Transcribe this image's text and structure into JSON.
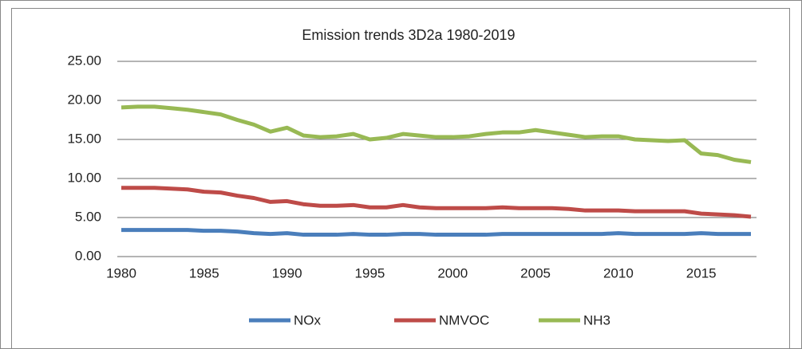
{
  "chart_data": {
    "type": "line",
    "title": "Emission trends 3D2a 1980-2019",
    "x": [
      1980,
      1981,
      1982,
      1983,
      1984,
      1985,
      1986,
      1987,
      1988,
      1989,
      1990,
      1991,
      1992,
      1993,
      1994,
      1995,
      1996,
      1997,
      1998,
      1999,
      2000,
      2001,
      2002,
      2003,
      2004,
      2005,
      2006,
      2007,
      2008,
      2009,
      2010,
      2011,
      2012,
      2013,
      2014,
      2015,
      2016,
      2017,
      2018
    ],
    "series": [
      {
        "name": "NOx",
        "color": "#4a7ebb",
        "values": [
          3.4,
          3.4,
          3.4,
          3.4,
          3.4,
          3.3,
          3.3,
          3.2,
          3.0,
          2.9,
          3.0,
          2.8,
          2.8,
          2.8,
          2.9,
          2.8,
          2.8,
          2.9,
          2.9,
          2.8,
          2.8,
          2.8,
          2.8,
          2.9,
          2.9,
          2.9,
          2.9,
          2.9,
          2.9,
          2.9,
          3.0,
          2.9,
          2.9,
          2.9,
          2.9,
          3.0,
          2.9,
          2.9,
          2.9
        ]
      },
      {
        "name": "NMVOC",
        "color": "#be4b48",
        "values": [
          8.8,
          8.8,
          8.8,
          8.7,
          8.6,
          8.3,
          8.2,
          7.8,
          7.5,
          7.0,
          7.1,
          6.7,
          6.5,
          6.5,
          6.6,
          6.3,
          6.3,
          6.6,
          6.3,
          6.2,
          6.2,
          6.2,
          6.2,
          6.3,
          6.2,
          6.2,
          6.2,
          6.1,
          5.9,
          5.9,
          5.9,
          5.8,
          5.8,
          5.8,
          5.8,
          5.5,
          5.4,
          5.3,
          5.1
        ]
      },
      {
        "name": "NH3",
        "color": "#98b954",
        "values": [
          19.1,
          19.2,
          19.2,
          19.0,
          18.8,
          18.5,
          18.2,
          17.5,
          16.9,
          16.0,
          16.5,
          15.5,
          15.3,
          15.4,
          15.7,
          15.0,
          15.2,
          15.7,
          15.5,
          15.3,
          15.3,
          15.4,
          15.7,
          15.9,
          15.9,
          16.2,
          15.9,
          15.6,
          15.3,
          15.4,
          15.4,
          15.0,
          14.9,
          14.8,
          14.9,
          13.2,
          13.0,
          12.4,
          12.1
        ]
      }
    ],
    "xlim": [
      1980,
      2018
    ],
    "xticks": [
      1980,
      1985,
      1990,
      1995,
      2000,
      2005,
      2010,
      2015
    ],
    "ylim": [
      0,
      25
    ],
    "yticks": [
      {
        "value": 0,
        "label": "0.00"
      },
      {
        "value": 5,
        "label": "5.00"
      },
      {
        "value": 10,
        "label": "10.00"
      },
      {
        "value": 15,
        "label": "15.00"
      },
      {
        "value": 20,
        "label": "20.00"
      },
      {
        "value": 25,
        "label": "25.00"
      }
    ],
    "grid": true,
    "legend": "bottom"
  }
}
